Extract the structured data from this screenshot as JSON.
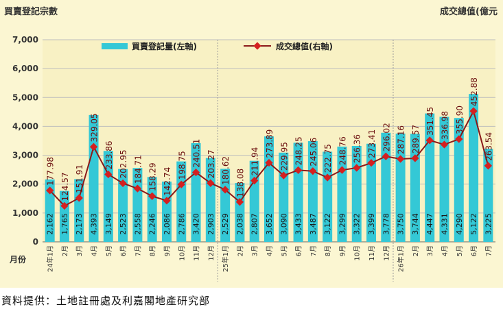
{
  "left_axis_title": "買賣登記宗數",
  "right_axis_title": "成交總值(億元",
  "source_note": "資料提供：土地註冊處及利嘉閣地產研究部",
  "colors": {
    "bar": "#34c8d6",
    "line": "#8b1a1a",
    "marker": "#d42020",
    "grid": "#bdbdbd",
    "plot_bg": "#f8f1c4"
  },
  "chart_data": {
    "type": "bar",
    "xlabel": "月份",
    "ylabel": "買賣登記宗數",
    "y2label": "成交總值(億元",
    "ylim": [
      0,
      7000
    ],
    "yticks": [
      "0",
      "1,000",
      "2,000",
      "3,000",
      "4,000",
      "5,000",
      "6,000",
      "7,000"
    ],
    "y2lim": [
      0,
      700
    ],
    "grid": true,
    "legend_position": "top",
    "categories": [
      "24年1月",
      "2月",
      "3月",
      "4月",
      "5月",
      "6月",
      "7月",
      "8月",
      "9月",
      "10月",
      "11月",
      "12月",
      "25年1月",
      "2月",
      "3月",
      "4月",
      "5月",
      "6月",
      "7月",
      "8月",
      "9月",
      "10月",
      "11月",
      "12月",
      "26年1月",
      "2月",
      "3月",
      "4月",
      "5月",
      "6月",
      "7月"
    ],
    "series": [
      {
        "name": "買賣登記量(左軸)",
        "type": "bar",
        "axis": "left",
        "values": [
          2162,
          1765,
          2173,
          4393,
          3149,
          2523,
          2558,
          2246,
          2086,
          2786,
          3420,
          2903,
          2529,
          2038,
          2807,
          3652,
          3090,
          3433,
          3487,
          3122,
          3299,
          3322,
          3399,
          3778,
          3750,
          3744,
          4447,
          4331,
          4290,
          5122,
          3225
        ],
        "labels": [
          "2,162",
          "1,765",
          "2,173",
          "4,393",
          "3,149",
          "2,523",
          "2,558",
          "2,246",
          "2,086",
          "2,786",
          "3,420",
          "2,903",
          "2,529",
          "2,038",
          "2,807",
          "3,652",
          "3,090",
          "3,433",
          "3,487",
          "3,122",
          "3,299",
          "3,322",
          "3,399",
          "3,778",
          "3,750",
          "3,744",
          "4,447",
          "4,331",
          "4,290",
          "5,122",
          "3,225"
        ]
      },
      {
        "name": "成交總值(右軸)",
        "type": "line",
        "axis": "right",
        "values": [
          177.98,
          124.57,
          151.91,
          329.05,
          233.86,
          202.95,
          184.71,
          158.29,
          142.74,
          198.75,
          240.51,
          203.27,
          180.62,
          138.08,
          211.94,
          273.89,
          229.95,
          248.25,
          245.06,
          222.75,
          248.76,
          256.36,
          273.41,
          296.02,
          287.16,
          289.57,
          351.45,
          336.98,
          355.9,
          452.88,
          263.54
        ],
        "labels": [
          "177.98",
          "124.57",
          "151.91",
          "329.05",
          "233.86",
          "202.95",
          "184.71",
          "158.29",
          "142.74",
          "198.75",
          "240.51",
          "203.27",
          "180.62",
          "138.08",
          "211.94",
          "273.89",
          "229.95",
          "248.25",
          "245.06",
          "222.75",
          "248.76",
          "256.36",
          "273.41",
          "296.02",
          "287.16",
          "289.57",
          "351.45",
          "336.98",
          "355.90",
          "452.88",
          "263.54"
        ]
      }
    ]
  }
}
